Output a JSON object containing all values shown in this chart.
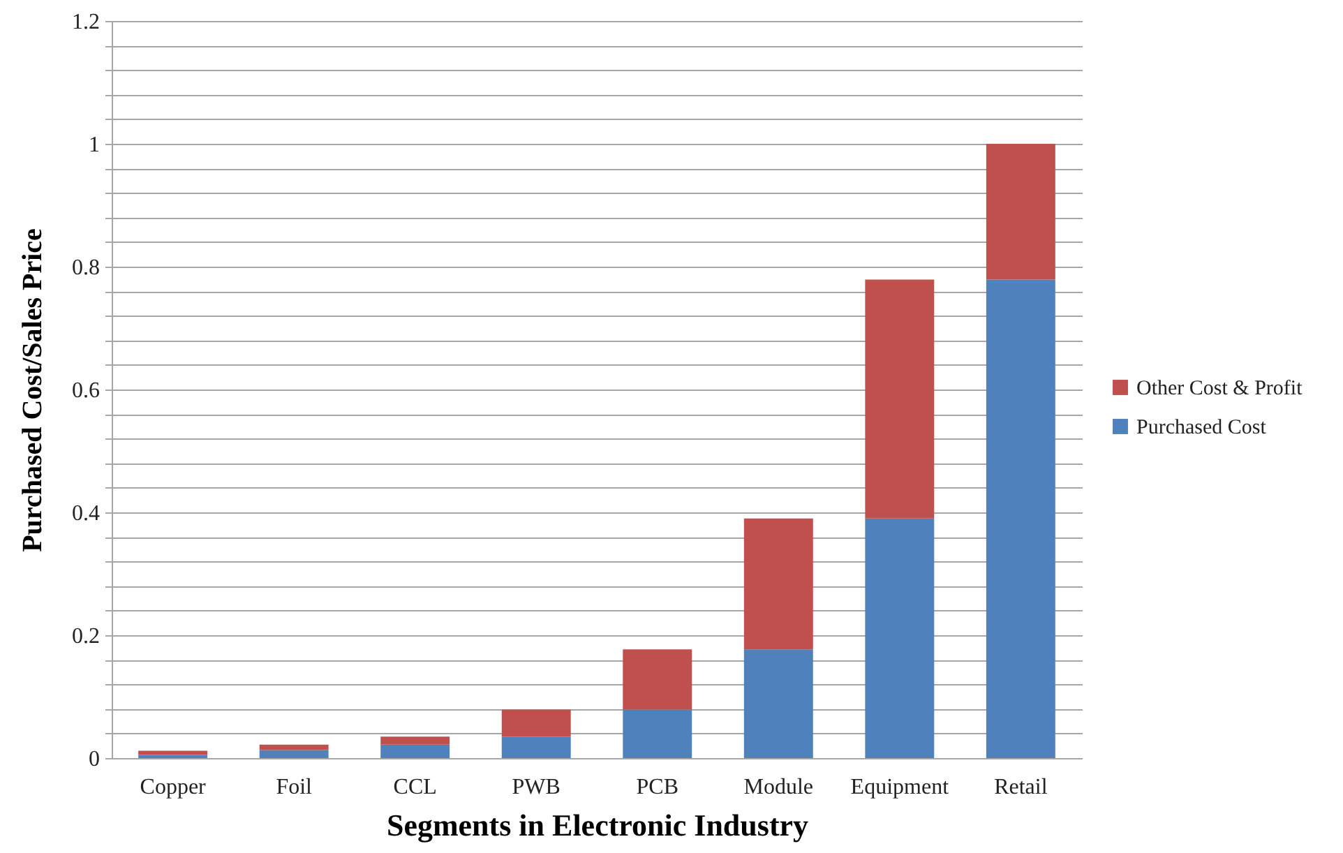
{
  "chart_data": {
    "type": "bar",
    "stacked": true,
    "xlabel": "Segments in Electronic Industry",
    "ylabel": "Purchased Cost/Sales Price",
    "categories": [
      "Copper",
      "Foil",
      "CCL",
      "PWB",
      "PCB",
      "Module",
      "Equipment",
      "Retail"
    ],
    "series": [
      {
        "name": "Purchased Cost",
        "color": "#4f81bd",
        "values": [
          0.005,
          0.013,
          0.022,
          0.035,
          0.079,
          0.177,
          0.39,
          0.779
        ]
      },
      {
        "name": "Other Cost & Profit",
        "color": "#c0504d",
        "values": [
          0.007,
          0.009,
          0.013,
          0.044,
          0.098,
          0.213,
          0.389,
          0.221
        ]
      }
    ],
    "ylim": [
      0,
      1.2
    ],
    "yticks": [
      0,
      {
        "value": 0.04,
        "label": null
      },
      {
        "value": 0.08,
        "label": null
      },
      {
        "value": 0.12,
        "label": null
      },
      {
        "value": 0.16,
        "label": null
      },
      0.2,
      {
        "value": 0.24,
        "label": null
      },
      {
        "value": 0.28,
        "label": null
      },
      {
        "value": 0.32,
        "label": null
      },
      {
        "value": 0.36,
        "label": null
      },
      0.4,
      {
        "value": 0.44,
        "label": null
      },
      {
        "value": 0.48,
        "label": null
      },
      {
        "value": 0.52,
        "label": null
      },
      {
        "value": 0.56,
        "label": null
      },
      0.6,
      {
        "value": 0.64,
        "label": null
      },
      {
        "value": 0.68,
        "label": null
      },
      {
        "value": 0.72,
        "label": null
      },
      {
        "value": 0.76,
        "label": null
      },
      0.8,
      {
        "value": 0.84,
        "label": null
      },
      {
        "value": 0.88,
        "label": null
      },
      {
        "value": 0.92,
        "label": null
      },
      {
        "value": 0.96,
        "label": null
      },
      1,
      {
        "value": 1.04,
        "label": null
      },
      {
        "value": 1.08,
        "label": null
      },
      {
        "value": 1.12,
        "label": null
      },
      {
        "value": 1.16,
        "label": null
      },
      1.2
    ],
    "grid": true,
    "legend": "right"
  }
}
